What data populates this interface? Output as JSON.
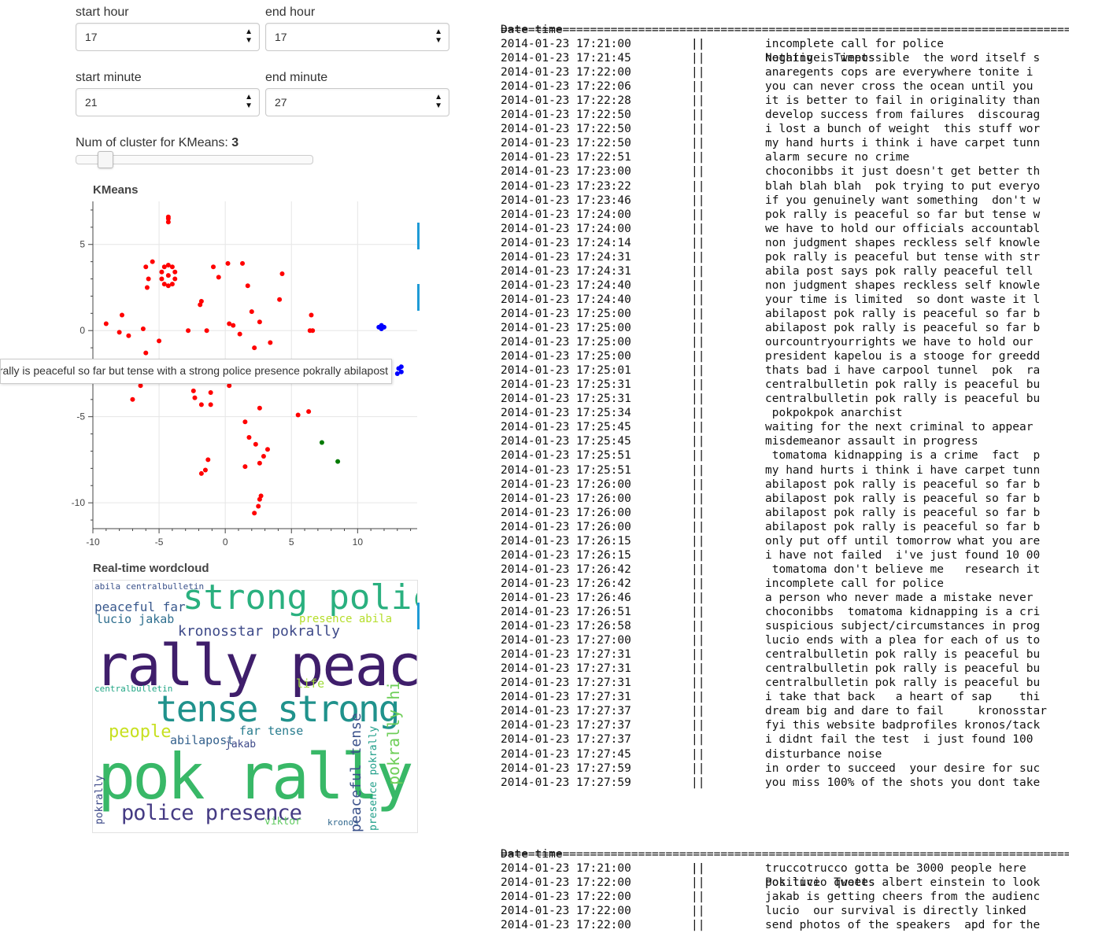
{
  "controls": {
    "start_hour": {
      "label": "start hour",
      "value": "17"
    },
    "end_hour": {
      "label": "end hour",
      "value": "17"
    },
    "start_minute": {
      "label": "start minute",
      "value": "21"
    },
    "end_minute": {
      "label": "end minute",
      "value": "27"
    },
    "clusters": {
      "label": "Num of cluster for KMeans:",
      "value": "3",
      "min": 1,
      "max": 20
    }
  },
  "chart_data": {
    "type": "scatter",
    "title": "KMeans",
    "xlim": [
      -10,
      14.5
    ],
    "ylim": [
      -11.5,
      7.5
    ],
    "x_ticks": [
      -10,
      -5,
      0,
      5,
      10
    ],
    "y_ticks": [
      5,
      0,
      -5,
      -10
    ],
    "grid": true,
    "series": [
      {
        "color": "#ff0000",
        "points": [
          [
            -4.3,
            6.6
          ],
          [
            -4.3,
            6.3
          ],
          [
            -4.3,
            6.5
          ],
          [
            -5.5,
            4.0
          ],
          [
            -6,
            3.7
          ],
          [
            -5.8,
            3.0
          ],
          [
            -5.9,
            2.5
          ],
          [
            -4.8,
            3.4
          ],
          [
            -4.6,
            3.7
          ],
          [
            -4.3,
            3.8
          ],
          [
            -4.0,
            3.7
          ],
          [
            -3.8,
            3.4
          ],
          [
            -3.8,
            3.0
          ],
          [
            -4.0,
            2.7
          ],
          [
            -4.3,
            2.6
          ],
          [
            -4.6,
            2.7
          ],
          [
            -4.8,
            3.0
          ],
          [
            -4.3,
            3.2
          ],
          [
            -9,
            0.4
          ],
          [
            -7.8,
            0.9
          ],
          [
            -8,
            -0.1
          ],
          [
            -7.3,
            -0.3
          ],
          [
            -6.2,
            0.1
          ],
          [
            -5,
            -0.6
          ],
          [
            -6,
            -1.3
          ],
          [
            -6.2,
            -2.3
          ],
          [
            -2.8,
            0
          ],
          [
            -1.8,
            1.7
          ],
          [
            -1.9,
            1.5
          ],
          [
            -1.4,
            0
          ],
          [
            -0.9,
            3.7
          ],
          [
            -0.5,
            3.1
          ],
          [
            0.2,
            3.9
          ],
          [
            0.3,
            0.4
          ],
          [
            0.6,
            0.3
          ],
          [
            1.1,
            -0.2
          ],
          [
            1.3,
            3.9
          ],
          [
            1.7,
            2.6
          ],
          [
            2,
            1.1
          ],
          [
            2.2,
            -1
          ],
          [
            2.6,
            0.5
          ],
          [
            3.4,
            -0.7
          ],
          [
            4.3,
            3.3
          ],
          [
            4.1,
            1.8
          ],
          [
            6.5,
            0.9
          ],
          [
            6.4,
            0
          ],
          [
            6.6,
            0
          ],
          [
            6.9,
            -2.3
          ],
          [
            5.5,
            -4.9
          ],
          [
            6.3,
            -4.7
          ],
          [
            -6.4,
            -3.2
          ],
          [
            -7,
            -4
          ],
          [
            -2.4,
            -3.5
          ],
          [
            -2.3,
            -3.9
          ],
          [
            -1.8,
            -4.3
          ],
          [
            -1.1,
            -3.6
          ],
          [
            -1.1,
            -4.3
          ],
          [
            0.3,
            -3.2
          ],
          [
            2,
            -2.3
          ],
          [
            2.6,
            -4.5
          ],
          [
            3.3,
            -2.4
          ],
          [
            1.5,
            -5.3
          ],
          [
            1.8,
            -6.2
          ],
          [
            2.3,
            -6.6
          ],
          [
            2.9,
            -7.3
          ],
          [
            3.2,
            -6.9
          ],
          [
            1.5,
            -7.9
          ],
          [
            2.6,
            -7.7
          ],
          [
            -1.3,
            -7.5
          ],
          [
            -1.5,
            -8.1
          ],
          [
            -1.8,
            -8.3
          ],
          [
            2.7,
            -9.6
          ],
          [
            2.6,
            -9.8
          ],
          [
            2.5,
            -10.2
          ],
          [
            2.2,
            -10.6
          ]
        ]
      },
      {
        "color": "#0000ff",
        "points": [
          [
            11.6,
            0.2
          ],
          [
            11.8,
            0.1
          ],
          [
            12,
            0.2
          ],
          [
            11.8,
            0.3
          ],
          [
            13.1,
            -2.2
          ],
          [
            13.3,
            -2.4
          ],
          [
            13.0,
            -2.5
          ],
          [
            13.3,
            -2.1
          ]
        ]
      },
      {
        "color": "#007a00",
        "points": [
          [
            7.3,
            -6.5
          ],
          [
            8.5,
            -7.6
          ]
        ]
      }
    ],
    "tooltip": "pok rally is peaceful so far but tense with a strong police presence pokrally abilapost"
  },
  "wordcloud": {
    "title": "Real-time wordcloud",
    "words": [
      {
        "text": "strong police",
        "color": "#2ab07f"
      },
      {
        "text": "rally peaceful",
        "color": "#3f1e6b"
      },
      {
        "text": "tense strong",
        "color": "#20928c"
      },
      {
        "text": "pok rally",
        "color": "#38b867"
      },
      {
        "text": "police presence",
        "color": "#443a83"
      },
      {
        "text": "kronosstar pokrally",
        "color": "#3e4a89"
      },
      {
        "text": "peaceful far",
        "color": "#38588c"
      },
      {
        "text": "lucio jakab",
        "color": "#2e6e8e"
      },
      {
        "text": "abila centralbulletin",
        "color": "#3b528b"
      },
      {
        "text": "presence abila",
        "color": "#b5de2b"
      },
      {
        "text": "people",
        "color": "#c7e020"
      },
      {
        "text": "abilapost",
        "color": "#34618d"
      },
      {
        "text": "far tense",
        "color": "#287c8e"
      },
      {
        "text": "jakab",
        "color": "#3e4a89"
      },
      {
        "text": "life",
        "color": "#9fda3a"
      },
      {
        "text": "centralbulletin",
        "color": "#21a685"
      },
      {
        "text": "viktor",
        "color": "#60ca60"
      },
      {
        "text": "kronos",
        "color": "#31688e"
      },
      {
        "text": "peaceful tense",
        "color": "#3b528b"
      },
      {
        "text": "pokrally hi",
        "color": "#6ece58"
      },
      {
        "text": "presence pokrally",
        "color": "#1f9e89"
      },
      {
        "text": "pokrally",
        "color": "#3e4a89"
      }
    ]
  },
  "negative": {
    "header_date": "Date time",
    "header_sep": "||",
    "header_title": "Negative  Tweets",
    "rule": "==============================================================================================================",
    "rows": [
      [
        "2014-01-23 17:21:00",
        "incomplete call for police"
      ],
      [
        "2014-01-23 17:21:45",
        "nothing is impossible  the word itself s"
      ],
      [
        "2014-01-23 17:22:00",
        "anaregents cops are everywhere tonite i"
      ],
      [
        "2014-01-23 17:22:06",
        "you can never cross the ocean until you"
      ],
      [
        "2014-01-23 17:22:28",
        "it is better to fail in originality than"
      ],
      [
        "2014-01-23 17:22:50",
        "develop success from failures  discourag"
      ],
      [
        "2014-01-23 17:22:50",
        "i lost a bunch of weight  this stuff wor"
      ],
      [
        "2014-01-23 17:22:50",
        "my hand hurts i think i have carpet tunn"
      ],
      [
        "2014-01-23 17:22:51",
        "alarm secure no crime"
      ],
      [
        "2014-01-23 17:23:00",
        "choconibbs it just doesn't get better th"
      ],
      [
        "2014-01-23 17:23:22",
        "blah blah blah  pok trying to put everyo"
      ],
      [
        "2014-01-23 17:23:46",
        "if you genuinely want something  don't w"
      ],
      [
        "2014-01-23 17:24:00",
        "pok rally is peaceful so far but tense w"
      ],
      [
        "2014-01-23 17:24:00",
        "we have to hold our officials accountabl"
      ],
      [
        "2014-01-23 17:24:14",
        "non judgment shapes reckless self knowle"
      ],
      [
        "2014-01-23 17:24:31",
        "pok rally is peaceful but tense with str"
      ],
      [
        "2014-01-23 17:24:31",
        "abila post says pok rally peaceful tell"
      ],
      [
        "2014-01-23 17:24:40",
        "non judgment shapes reckless self knowle"
      ],
      [
        "2014-01-23 17:24:40",
        "your time is limited  so dont waste it l"
      ],
      [
        "2014-01-23 17:25:00",
        "abilapost pok rally is peaceful so far b"
      ],
      [
        "2014-01-23 17:25:00",
        "abilapost pok rally is peaceful so far b"
      ],
      [
        "2014-01-23 17:25:00",
        "ourcountryourrights we have to hold our"
      ],
      [
        "2014-01-23 17:25:00",
        "president kapelou is a stooge for greedd"
      ],
      [
        "2014-01-23 17:25:01",
        "thats bad i have carpool tunnel  pok  ra"
      ],
      [
        "2014-01-23 17:25:31",
        "centralbulletin pok rally is peaceful bu"
      ],
      [
        "2014-01-23 17:25:31",
        "centralbulletin pok rally is peaceful bu"
      ],
      [
        "2014-01-23 17:25:34",
        " pokpokpok anarchist"
      ],
      [
        "2014-01-23 17:25:45",
        "waiting for the next criminal to appear"
      ],
      [
        "2014-01-23 17:25:45",
        "misdemeanor assault in progress"
      ],
      [
        "2014-01-23 17:25:51",
        " tomatoma kidnapping is a crime  fact  p"
      ],
      [
        "2014-01-23 17:25:51",
        "my hand hurts i think i have carpet tunn"
      ],
      [
        "2014-01-23 17:26:00",
        "abilapost pok rally is peaceful so far b"
      ],
      [
        "2014-01-23 17:26:00",
        "abilapost pok rally is peaceful so far b"
      ],
      [
        "2014-01-23 17:26:00",
        "abilapost pok rally is peaceful so far b"
      ],
      [
        "2014-01-23 17:26:00",
        "abilapost pok rally is peaceful so far b"
      ],
      [
        "2014-01-23 17:26:15",
        "only put off until tomorrow what you are"
      ],
      [
        "2014-01-23 17:26:15",
        "i have not failed  i've just found 10 00"
      ],
      [
        "2014-01-23 17:26:42",
        " tomatoma don't believe me   research it"
      ],
      [
        "2014-01-23 17:26:42",
        "incomplete call for police"
      ],
      [
        "2014-01-23 17:26:46",
        "a person who never made a mistake never"
      ],
      [
        "2014-01-23 17:26:51",
        "choconibbs  tomatoma kidnapping is a cri"
      ],
      [
        "2014-01-23 17:26:58",
        "suspicious subject/circumstances in prog"
      ],
      [
        "2014-01-23 17:27:00",
        "lucio ends with a plea for each of us to"
      ],
      [
        "2014-01-23 17:27:31",
        "centralbulletin pok rally is peaceful bu"
      ],
      [
        "2014-01-23 17:27:31",
        "centralbulletin pok rally is peaceful bu"
      ],
      [
        "2014-01-23 17:27:31",
        "centralbulletin pok rally is peaceful bu"
      ],
      [
        "2014-01-23 17:27:31",
        "i take that back   a heart of sap    thi"
      ],
      [
        "2014-01-23 17:27:37",
        "dream big and dare to fail     kronosstar"
      ],
      [
        "2014-01-23 17:27:37",
        "fyi this website badprofiles kronos/tack"
      ],
      [
        "2014-01-23 17:27:37",
        "i didnt fail the test  i just found 100"
      ],
      [
        "2014-01-23 17:27:45",
        "disturbance noise"
      ],
      [
        "2014-01-23 17:27:59",
        "in order to succeed  your desire for suc"
      ],
      [
        "2014-01-23 17:27:59",
        "you miss 100% of the shots you dont take"
      ]
    ]
  },
  "positive": {
    "header_date": "Date time",
    "header_sep": "||",
    "header_title": "Positive  Tweets",
    "rule": "==============================================================================================================",
    "rows": [
      [
        "2014-01-23 17:21:00",
        "truccotrucco gotta be 3000 people here"
      ],
      [
        "2014-01-23 17:22:00",
        "pok lucio quotes albert einstein to look"
      ],
      [
        "2014-01-23 17:22:00",
        "jakab is getting cheers from the audienc"
      ],
      [
        "2014-01-23 17:22:00",
        "lucio  our survival is directly linked"
      ],
      [
        "2014-01-23 17:22:00",
        "send photos of the speakers  apd for the"
      ]
    ]
  }
}
